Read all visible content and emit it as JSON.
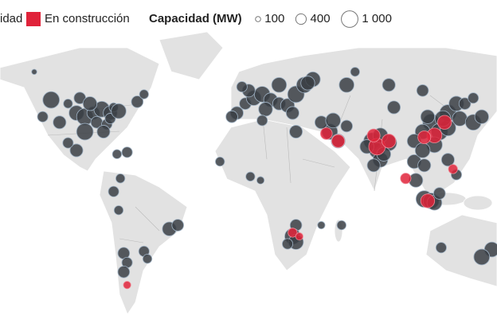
{
  "chart_data": {
    "type": "bubble-map",
    "series": [
      {
        "name": "idad",
        "color": "#3a3e44",
        "points": [
          {
            "lon": -100,
            "lat": 40,
            "mw": 800
          },
          {
            "lon": -95,
            "lat": 38,
            "mw": 1000
          },
          {
            "lon": -90,
            "lat": 40,
            "mw": 600
          },
          {
            "lon": -85,
            "lat": 42,
            "mw": 900
          },
          {
            "lon": -80,
            "lat": 40,
            "mw": 700
          },
          {
            "lon": -88,
            "lat": 35,
            "mw": 500
          },
          {
            "lon": -95,
            "lat": 30,
            "mw": 1000
          },
          {
            "lon": -82,
            "lat": 34,
            "mw": 400
          },
          {
            "lon": -105,
            "lat": 45,
            "mw": 300
          },
          {
            "lon": -110,
            "lat": 35,
            "mw": 600
          },
          {
            "lon": -120,
            "lat": 38,
            "mw": 400
          },
          {
            "lon": -78,
            "lat": 43,
            "mw": 300
          },
          {
            "lon": -98,
            "lat": 48,
            "mw": 500
          },
          {
            "lon": -92,
            "lat": 45,
            "mw": 700
          },
          {
            "lon": -84,
            "lat": 30,
            "mw": 600
          },
          {
            "lon": -80,
            "lat": 37,
            "mw": 400
          },
          {
            "lon": -75,
            "lat": 41,
            "mw": 800
          },
          {
            "lon": -115,
            "lat": 47,
            "mw": 1000
          },
          {
            "lon": -64,
            "lat": 46,
            "mw": 500
          },
          {
            "lon": -60,
            "lat": 50,
            "mw": 300
          },
          {
            "lon": -125,
            "lat": 62,
            "mw": 100
          },
          {
            "lon": -100,
            "lat": 20,
            "mw": 600
          },
          {
            "lon": -105,
            "lat": 24,
            "mw": 400
          },
          {
            "lon": -76,
            "lat": 18,
            "mw": 300
          },
          {
            "lon": -70,
            "lat": 19,
            "mw": 400
          },
          {
            "lon": -74,
            "lat": 5,
            "mw": 300
          },
          {
            "lon": -78,
            "lat": -2,
            "mw": 400
          },
          {
            "lon": -75,
            "lat": -12,
            "mw": 300
          },
          {
            "lon": -45,
            "lat": -22,
            "mw": 700
          },
          {
            "lon": -40,
            "lat": -20,
            "mw": 500
          },
          {
            "lon": -72,
            "lat": -35,
            "mw": 500
          },
          {
            "lon": -70,
            "lat": -40,
            "mw": 400
          },
          {
            "lon": -72,
            "lat": -45,
            "mw": 500
          },
          {
            "lon": -60,
            "lat": -34,
            "mw": 400
          },
          {
            "lon": -58,
            "lat": -38,
            "mw": 300
          },
          {
            "lon": -5,
            "lat": 40,
            "mw": 600
          },
          {
            "lon": 0,
            "lat": 45,
            "mw": 500
          },
          {
            "lon": 5,
            "lat": 48,
            "mw": 800
          },
          {
            "lon": 10,
            "lat": 50,
            "mw": 900
          },
          {
            "lon": 15,
            "lat": 47,
            "mw": 700
          },
          {
            "lon": 20,
            "lat": 45,
            "mw": 600
          },
          {
            "lon": 25,
            "lat": 44,
            "mw": 700
          },
          {
            "lon": 30,
            "lat": 50,
            "mw": 1000
          },
          {
            "lon": 2,
            "lat": 52,
            "mw": 600
          },
          {
            "lon": -2,
            "lat": 54,
            "mw": 400
          },
          {
            "lon": 20,
            "lat": 55,
            "mw": 800
          },
          {
            "lon": 35,
            "lat": 55,
            "mw": 900
          },
          {
            "lon": 12,
            "lat": 42,
            "mw": 700
          },
          {
            "lon": 28,
            "lat": 40,
            "mw": 600
          },
          {
            "lon": 40,
            "lat": 58,
            "mw": 800
          },
          {
            "lon": -8,
            "lat": 38,
            "mw": 500
          },
          {
            "lon": 10,
            "lat": 36,
            "mw": 400
          },
          {
            "lon": 30,
            "lat": 30,
            "mw": 600
          },
          {
            "lon": -15,
            "lat": 14,
            "mw": 300
          },
          {
            "lon": 3,
            "lat": 6,
            "mw": 300
          },
          {
            "lon": 9,
            "lat": 4,
            "mw": 200
          },
          {
            "lon": 30,
            "lat": -20,
            "mw": 500
          },
          {
            "lon": 28,
            "lat": -26,
            "mw": 900
          },
          {
            "lon": 30,
            "lat": -29,
            "mw": 800
          },
          {
            "lon": 25,
            "lat": -30,
            "mw": 400
          },
          {
            "lon": 45,
            "lat": -20,
            "mw": 200
          },
          {
            "lon": 57,
            "lat": -20,
            "mw": 300
          },
          {
            "lon": 50,
            "lat": 30,
            "mw": 900
          },
          {
            "lon": 55,
            "lat": 25,
            "mw": 700
          },
          {
            "lon": 45,
            "lat": 35,
            "mw": 600
          },
          {
            "lon": 52,
            "lat": 36,
            "mw": 800
          },
          {
            "lon": 60,
            "lat": 33,
            "mw": 500
          },
          {
            "lon": 75,
            "lat": 25,
            "mw": 1000
          },
          {
            "lon": 78,
            "lat": 20,
            "mw": 900
          },
          {
            "lon": 80,
            "lat": 15,
            "mw": 800
          },
          {
            "lon": 72,
            "lat": 22,
            "mw": 700
          },
          {
            "lon": 85,
            "lat": 24,
            "mw": 900
          },
          {
            "lon": 76,
            "lat": 12,
            "mw": 600
          },
          {
            "lon": 80,
            "lat": 28,
            "mw": 800
          },
          {
            "lon": 82,
            "lat": 18,
            "mw": 700
          },
          {
            "lon": 110,
            "lat": 35,
            "mw": 1000
          },
          {
            "lon": 115,
            "lat": 30,
            "mw": 1000
          },
          {
            "lon": 120,
            "lat": 32,
            "mw": 900
          },
          {
            "lon": 105,
            "lat": 30,
            "mw": 800
          },
          {
            "lon": 112,
            "lat": 23,
            "mw": 900
          },
          {
            "lon": 120,
            "lat": 40,
            "mw": 1000
          },
          {
            "lon": 117,
            "lat": 37,
            "mw": 900
          },
          {
            "lon": 100,
            "lat": 25,
            "mw": 700
          },
          {
            "lon": 125,
            "lat": 45,
            "mw": 800
          },
          {
            "lon": 108,
            "lat": 38,
            "mw": 700
          },
          {
            "lon": 130,
            "lat": 45,
            "mw": 500
          },
          {
            "lon": 88,
            "lat": 43,
            "mw": 600
          },
          {
            "lon": 127,
            "lat": 37,
            "mw": 800
          },
          {
            "lon": 135,
            "lat": 35,
            "mw": 900
          },
          {
            "lon": 140,
            "lat": 38,
            "mw": 700
          },
          {
            "lon": 100,
            "lat": 14,
            "mw": 700
          },
          {
            "lon": 105,
            "lat": 20,
            "mw": 800
          },
          {
            "lon": 106,
            "lat": 12,
            "mw": 600
          },
          {
            "lon": 101,
            "lat": 4,
            "mw": 700
          },
          {
            "lon": 106,
            "lat": -6,
            "mw": 1000
          },
          {
            "lon": 110,
            "lat": -7,
            "mw": 900
          },
          {
            "lon": 112,
            "lat": -8,
            "mw": 800
          },
          {
            "lon": 120,
            "lat": 15,
            "mw": 600
          },
          {
            "lon": 125,
            "lat": 7,
            "mw": 400
          },
          {
            "lon": 115,
            "lat": -3,
            "mw": 500
          },
          {
            "lon": 146,
            "lat": -33,
            "mw": 800
          },
          {
            "lon": 140,
            "lat": -37,
            "mw": 900
          },
          {
            "lon": 116,
            "lat": -32,
            "mw": 400
          },
          {
            "lon": 60,
            "lat": 55,
            "mw": 800
          },
          {
            "lon": 37,
            "lat": 56,
            "mw": 700
          },
          {
            "lon": 85,
            "lat": 55,
            "mw": 600
          },
          {
            "lon": 105,
            "lat": 52,
            "mw": 500
          },
          {
            "lon": 65,
            "lat": 62,
            "mw": 300
          },
          {
            "lon": 135,
            "lat": 48,
            "mw": 400
          }
        ]
      },
      {
        "name": "En construcción",
        "color": "#e0233a",
        "points": [
          {
            "lon": -70,
            "lat": -52,
            "mw": 200
          },
          {
            "lon": 28,
            "lat": -24,
            "mw": 300
          },
          {
            "lon": 32,
            "lat": -26,
            "mw": 200
          },
          {
            "lon": 55,
            "lat": 25,
            "mw": 600
          },
          {
            "lon": 48,
            "lat": 29,
            "mw": 500
          },
          {
            "lon": 78,
            "lat": 22,
            "mw": 1000
          },
          {
            "lon": 85,
            "lat": 25,
            "mw": 700
          },
          {
            "lon": 76,
            "lat": 28,
            "mw": 600
          },
          {
            "lon": 112,
            "lat": 28,
            "mw": 800
          },
          {
            "lon": 118,
            "lat": 35,
            "mw": 700
          },
          {
            "lon": 106,
            "lat": 27,
            "mw": 600
          },
          {
            "lon": 108,
            "lat": -7,
            "mw": 700
          },
          {
            "lon": 95,
            "lat": 5,
            "mw": 400
          },
          {
            "lon": 123,
            "lat": 10,
            "mw": 300
          }
        ]
      }
    ],
    "size_legend": {
      "title": "Capacidad (MW)",
      "sizes": [
        100,
        400,
        {
          "value": 1000,
          "label": "1 000"
        }
      ]
    }
  }
}
